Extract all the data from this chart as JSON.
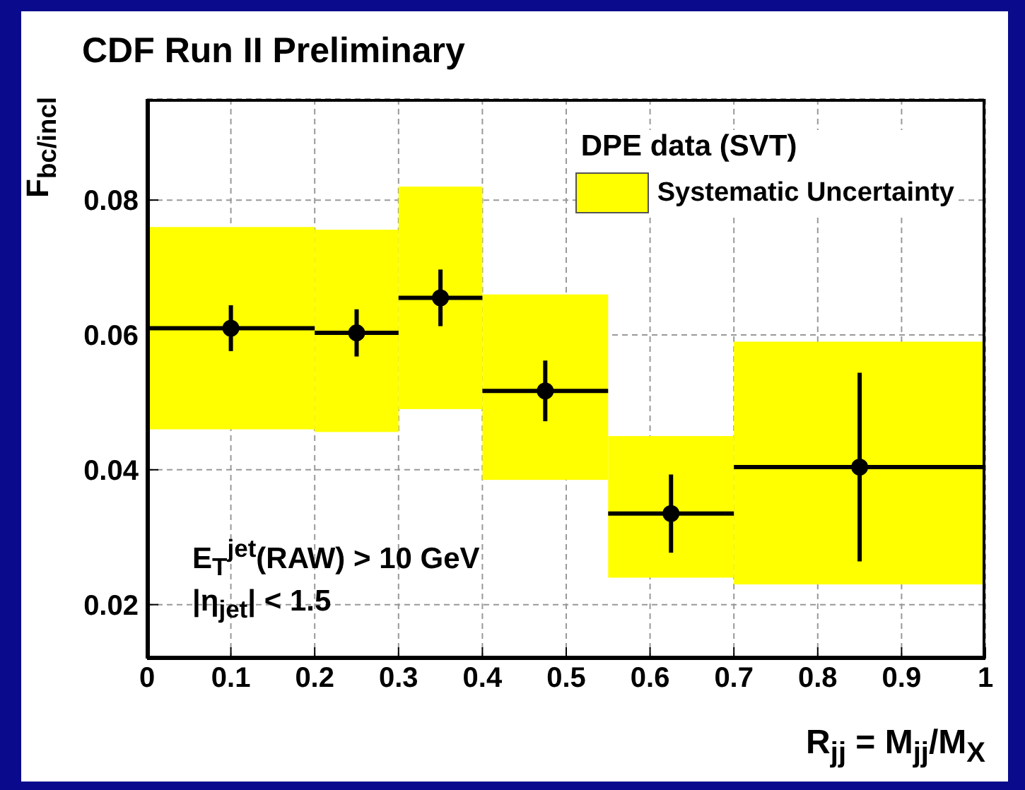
{
  "chart_data": {
    "type": "scatter",
    "title": "CDF Run II Preliminary",
    "xlabel": "R$_{jj}$ = M$_{jj}$/M$_{X}$",
    "ylabel": "F$_{bc/incl}$",
    "legend_title": "DPE data (SVT)",
    "legend": "top right",
    "grid": true,
    "marker": "circle",
    "xlim": [
      0,
      1
    ],
    "xticks": [
      0,
      0.1,
      0.2,
      0.3,
      0.4,
      0.5,
      0.6,
      0.7,
      0.8,
      0.9,
      1
    ],
    "ylim": [
      0.012,
      0.095
    ],
    "yticks": [
      0.02,
      0.04,
      0.06,
      0.08
    ],
    "annotations": [
      "E$_{T}$$^{jet}$(RAW) > 10 GeV",
      "|η$_{jet}$| < 1.5"
    ],
    "series": [
      {
        "name": "Systematic Uncertainty",
        "type": "histogram",
        "color": "#ffff00",
        "bins": [
          0,
          0.2,
          0.3,
          0.4,
          0.55,
          0.7,
          1
        ],
        "base": [
          0.046,
          0.0456,
          0.049,
          0.0385,
          0.024,
          0.023
        ],
        "values": [
          0.03,
          0.03,
          0.033,
          0.0275,
          0.021,
          0.036
        ]
      },
      {
        "color": "#000000",
        "x": [
          0.1,
          0.25,
          0.35,
          0.475,
          0.625,
          0.85
        ],
        "values": [
          0.061,
          0.0603,
          0.0655,
          0.0517,
          0.0335,
          0.0404
        ],
        "errors": [
          0.0034,
          0.0035,
          0.0042,
          0.0045,
          0.0058,
          0.014
        ],
        "xerrors": [
          0.1,
          0.05,
          0.05,
          0.075,
          0.075,
          0.15
        ]
      }
    ]
  }
}
